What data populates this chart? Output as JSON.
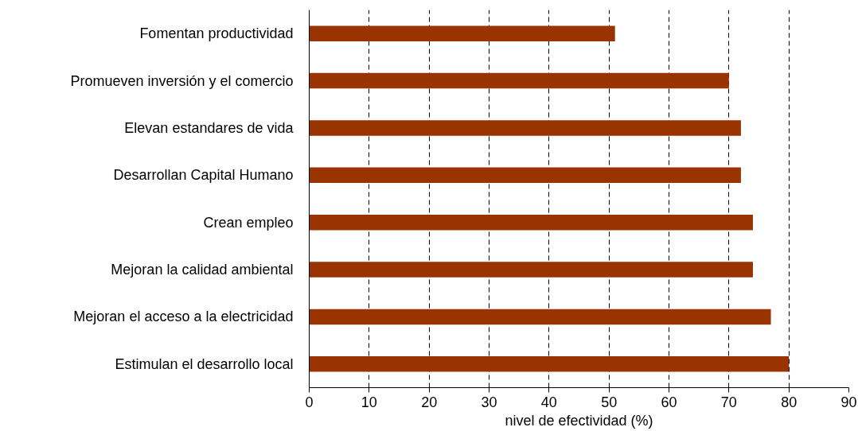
{
  "chart_data": {
    "type": "bar",
    "orientation": "horizontal",
    "xlabel": "nivel de efectividad (%)",
    "categories": [
      "Fomentan productividad",
      "Promueven inversión y el comercio",
      "Elevan estandares de vida",
      "Desarrollan Capital Humano",
      "Crean empleo",
      "Mejoran la calidad ambiental",
      "Mejoran el acceso a la electricidad",
      "Estimulan el desarrollo local"
    ],
    "values": [
      51,
      70,
      72,
      72,
      74,
      74,
      77,
      80
    ],
    "color": "#993300",
    "xlim": [
      0,
      90
    ],
    "xticks": [
      0,
      10,
      20,
      30,
      40,
      50,
      60,
      70,
      80,
      90
    ],
    "grid": "x"
  }
}
